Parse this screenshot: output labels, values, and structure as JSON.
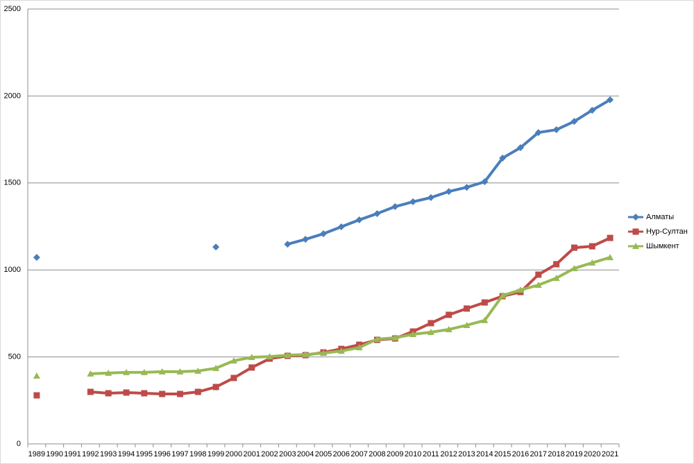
{
  "chart_data": {
    "type": "line",
    "categories": [
      "1989",
      "1990",
      "1991",
      "1992",
      "1993",
      "1994",
      "1995",
      "1996",
      "1997",
      "1998",
      "1999",
      "2000",
      "2001",
      "2002",
      "2003",
      "2004",
      "2005",
      "2006",
      "2007",
      "2008",
      "2009",
      "2010",
      "2011",
      "2012",
      "2013",
      "2014",
      "2015",
      "2016",
      "2017",
      "2018",
      "2019",
      "2020",
      "2021"
    ],
    "series": [
      {
        "name": "Алматы",
        "color": "#4a7ebb",
        "marker": "diamond",
        "values": [
          1072,
          null,
          null,
          null,
          null,
          null,
          null,
          null,
          null,
          null,
          1132,
          null,
          null,
          null,
          1148,
          1176,
          1208,
          1248,
          1288,
          1324,
          1364,
          1392,
          1416,
          1451,
          1475,
          1507,
          1643,
          1703,
          1790,
          1806,
          1854,
          1918,
          1978
        ]
      },
      {
        "name": "Нур-Султан",
        "color": "#be4b48",
        "marker": "square",
        "values": [
          279,
          null,
          null,
          299,
          291,
          295,
          291,
          287,
          287,
          299,
          327,
          379,
          439,
          490,
          506,
          510,
          526,
          546,
          570,
          598,
          606,
          646,
          694,
          742,
          778,
          813,
          849,
          873,
          973,
          1033,
          1128,
          1136,
          1184
        ]
      },
      {
        "name": "Шымкент",
        "color": "#98b954",
        "marker": "triangle",
        "values": [
          391,
          null,
          null,
          403,
          407,
          411,
          411,
          415,
          415,
          419,
          435,
          478,
          498,
          502,
          510,
          514,
          522,
          534,
          554,
          602,
          610,
          630,
          642,
          658,
          682,
          710,
          853,
          885,
          913,
          953,
          1009,
          1041,
          1072
        ]
      }
    ],
    "ylim": [
      0,
      2500
    ],
    "yticks": [
      0,
      500,
      1000,
      1500,
      2000,
      2500
    ],
    "grid": true,
    "legend": "right"
  }
}
